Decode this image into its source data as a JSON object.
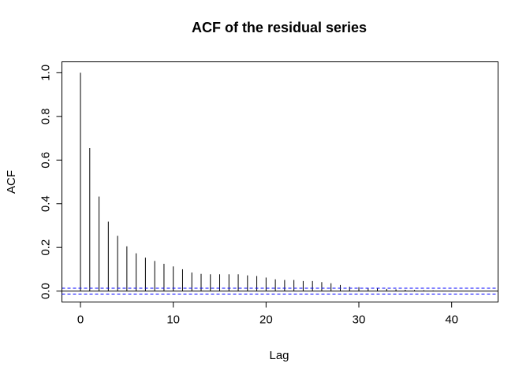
{
  "chart_data": {
    "type": "bar",
    "title": "ACF of the residual series",
    "xlabel": "Lag",
    "ylabel": "ACF",
    "xlim": [
      -2,
      45
    ],
    "ylim": [
      -0.05,
      1.05
    ],
    "xticks": [
      0,
      10,
      20,
      30,
      40
    ],
    "xtick_labels": [
      "0",
      "10",
      "20",
      "30",
      "40"
    ],
    "yticks": [
      0.0,
      0.2,
      0.4,
      0.6,
      0.8,
      1.0
    ],
    "ytick_labels": [
      "0.0",
      "0.2",
      "0.4",
      "0.6",
      "0.8",
      "1.0"
    ],
    "grid": false,
    "zero_line": 0,
    "confidence_bounds": [
      0.0133,
      -0.0133
    ],
    "series": [
      {
        "x": [
          0,
          1,
          2,
          3,
          4,
          5,
          6,
          7,
          8,
          9,
          10,
          11,
          12,
          13,
          14,
          15,
          16,
          17,
          18,
          19,
          20,
          21,
          22,
          23,
          24,
          25,
          26,
          27,
          28,
          29,
          30,
          31,
          32,
          33,
          34,
          35,
          36,
          37,
          38,
          39,
          40,
          41,
          42
        ],
        "values": [
          1.0,
          0.655,
          0.433,
          0.318,
          0.253,
          0.205,
          0.173,
          0.153,
          0.138,
          0.125,
          0.113,
          0.1,
          0.085,
          0.079,
          0.077,
          0.077,
          0.077,
          0.077,
          0.072,
          0.069,
          0.062,
          0.054,
          0.051,
          0.051,
          0.046,
          0.046,
          0.041,
          0.036,
          0.028,
          0.02,
          0.018,
          0.015,
          0.013,
          0.01,
          0.008,
          0.006,
          0.005,
          0.004,
          0.003,
          0.002,
          0.002,
          0.001,
          0.001
        ]
      }
    ],
    "colors": {
      "spikes": "#000000",
      "zero_line": "#000000",
      "confidence_bounds": "#0000ff",
      "axes": "#000000"
    }
  }
}
